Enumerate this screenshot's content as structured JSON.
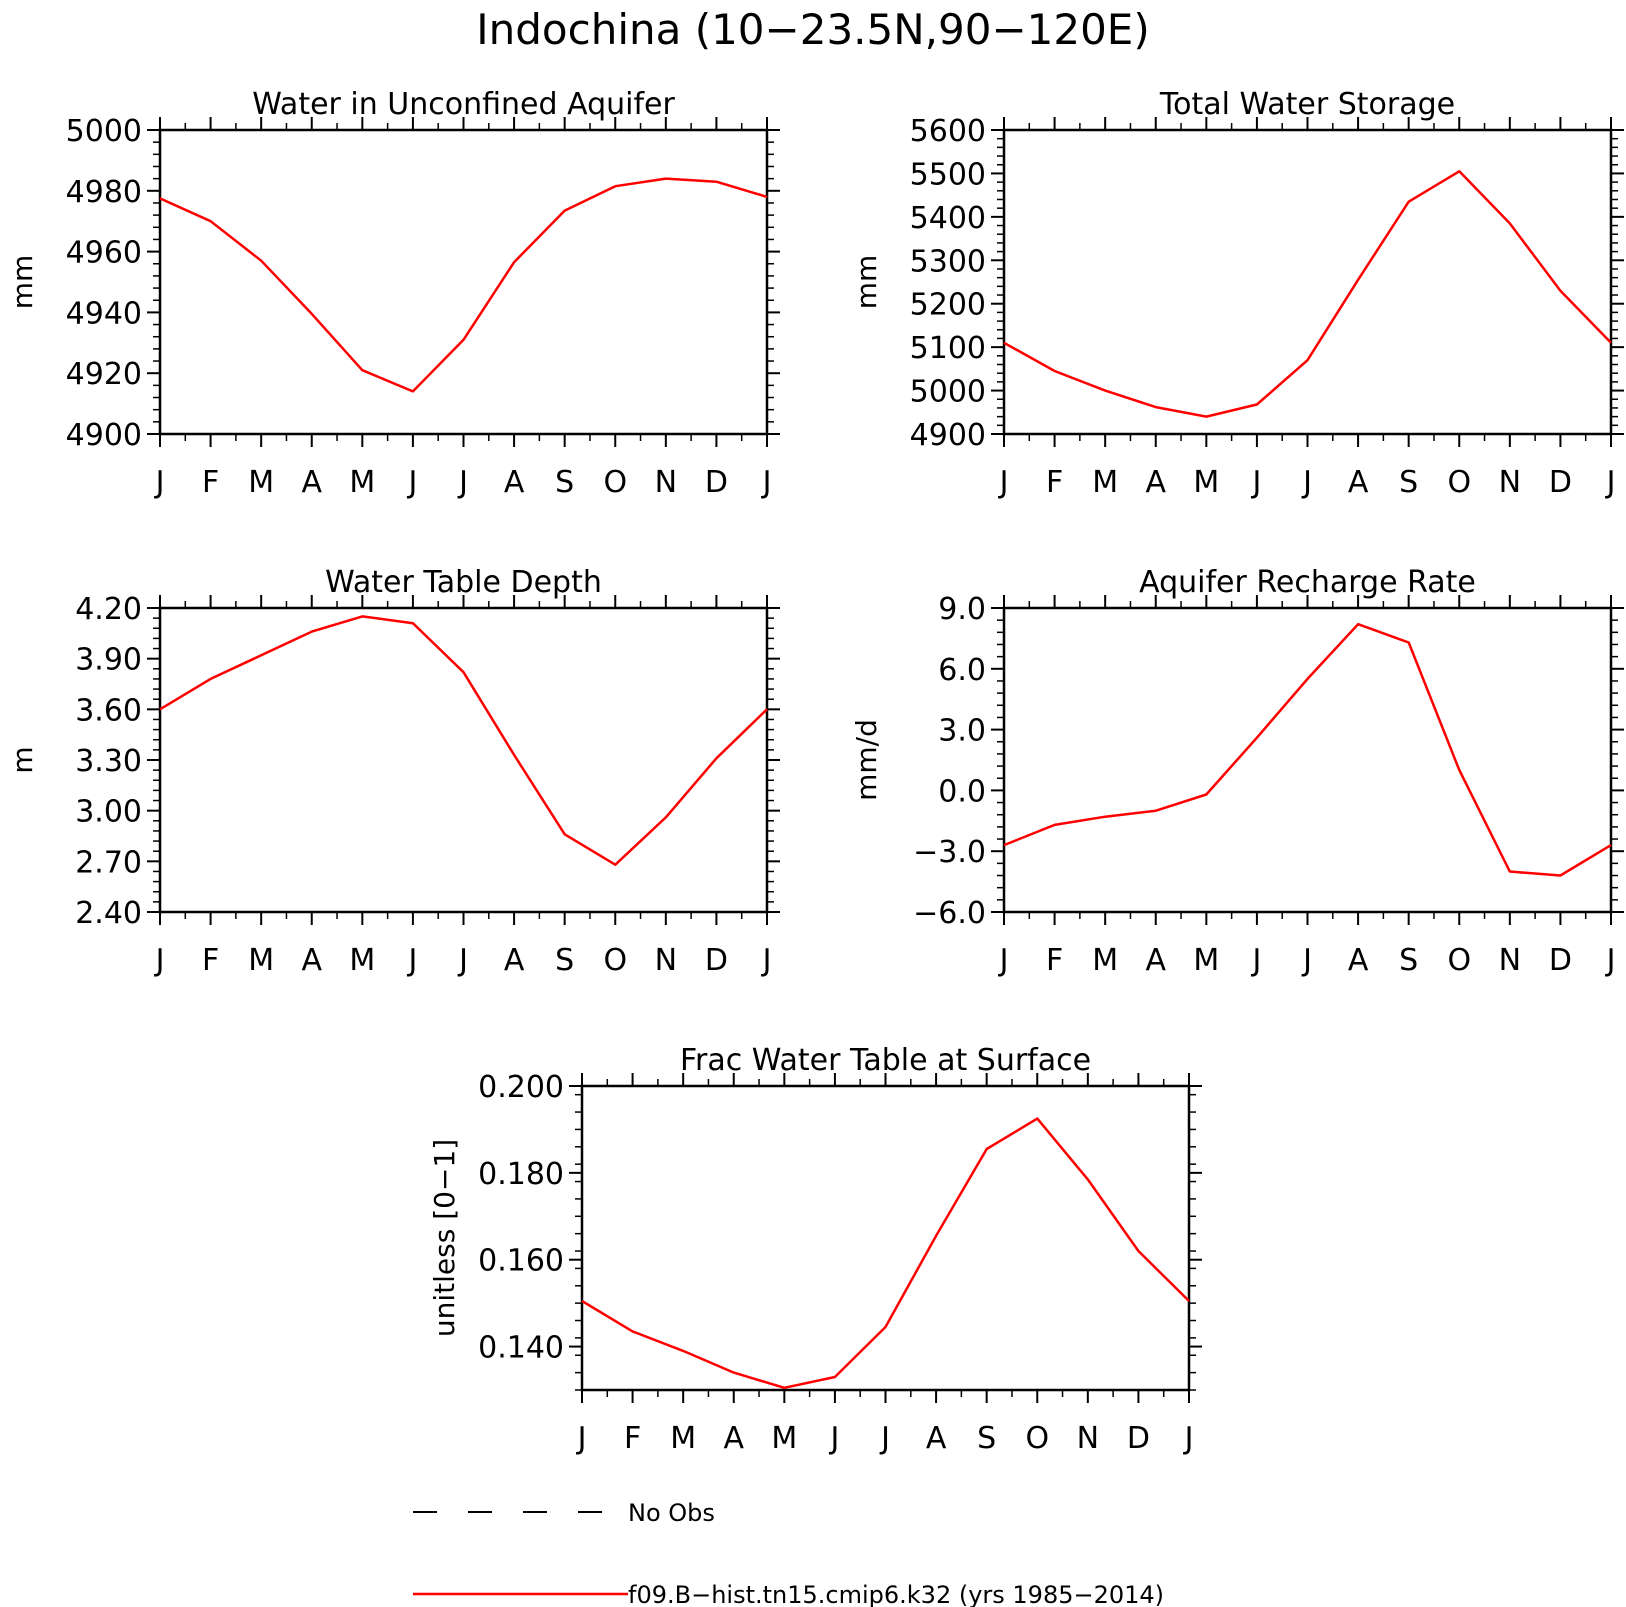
{
  "figure_title": "Indochina (10-23.5N,90-120E)",
  "legend": [
    {
      "label": "No Obs",
      "style": "dashed",
      "color": "#000000"
    },
    {
      "label": "f09.B-hist.tn15.cmip6.k32 (yrs 1985-2014)",
      "style": "solid",
      "color": "#ff0000"
    }
  ],
  "chart_data": [
    {
      "type": "line",
      "title": "Water in Unconfined Aquifer",
      "ylabel": "mm",
      "categories": [
        "J",
        "F",
        "M",
        "A",
        "M",
        "J",
        "J",
        "A",
        "S",
        "O",
        "N",
        "D",
        "J"
      ],
      "ylim": [
        4900,
        5000
      ],
      "yticks": [
        4900,
        4920,
        4940,
        4960,
        4980,
        5000
      ],
      "ytick_labels": [
        "4900",
        "4920",
        "4940",
        "4960",
        "4980",
        "5000"
      ],
      "series": [
        {
          "color": "#ff0000",
          "values": [
            4977.5,
            4970,
            4957,
            4939.5,
            4921,
            4914,
            4931,
            4956.5,
            4973.5,
            4981.5,
            4984,
            4983,
            4978
          ]
        }
      ]
    },
    {
      "type": "line",
      "title": "Total Water Storage",
      "ylabel": "mm",
      "categories": [
        "J",
        "F",
        "M",
        "A",
        "M",
        "J",
        "J",
        "A",
        "S",
        "O",
        "N",
        "D",
        "J"
      ],
      "ylim": [
        4900,
        5600
      ],
      "yticks": [
        4900,
        5000,
        5100,
        5200,
        5300,
        5400,
        5500,
        5600
      ],
      "ytick_labels": [
        "4900",
        "5000",
        "5100",
        "5200",
        "5300",
        "5400",
        "5500",
        "5600"
      ],
      "series": [
        {
          "color": "#ff0000",
          "values": [
            5110,
            5045,
            5000,
            4962,
            4940,
            4968,
            5070,
            5255,
            5435,
            5505,
            5385,
            5230,
            5110
          ]
        }
      ]
    },
    {
      "type": "line",
      "title": "Water Table Depth",
      "ylabel": "m",
      "categories": [
        "J",
        "F",
        "M",
        "A",
        "M",
        "J",
        "J",
        "A",
        "S",
        "O",
        "N",
        "D",
        "J"
      ],
      "ylim": [
        2.4,
        4.2
      ],
      "yticks": [
        2.4,
        2.7,
        3.0,
        3.3,
        3.6,
        3.9,
        4.2
      ],
      "ytick_labels": [
        "2.40",
        "2.70",
        "3.00",
        "3.30",
        "3.60",
        "3.90",
        "4.20"
      ],
      "series": [
        {
          "color": "#ff0000",
          "values": [
            3.6,
            3.78,
            3.92,
            4.06,
            4.15,
            4.11,
            3.82,
            3.33,
            2.86,
            2.68,
            2.96,
            3.31,
            3.6
          ]
        }
      ]
    },
    {
      "type": "line",
      "title": "Aquifer Recharge Rate",
      "ylabel": "mm/d",
      "categories": [
        "J",
        "F",
        "M",
        "A",
        "M",
        "J",
        "J",
        "A",
        "S",
        "O",
        "N",
        "D",
        "J"
      ],
      "ylim": [
        -6.0,
        9.0
      ],
      "yticks": [
        -6.0,
        -3.0,
        0.0,
        3.0,
        6.0,
        9.0
      ],
      "ytick_labels": [
        "-6.0",
        "-3.0",
        "0.0",
        "3.0",
        "6.0",
        "9.0"
      ],
      "series": [
        {
          "color": "#ff0000",
          "values": [
            -2.7,
            -1.7,
            -1.3,
            -1.0,
            -0.2,
            2.6,
            5.5,
            8.2,
            7.3,
            1.0,
            -4.0,
            -4.2,
            -2.7
          ]
        }
      ]
    },
    {
      "type": "line",
      "title": "Frac Water Table at Surface",
      "ylabel": "unitless [0-1]",
      "categories": [
        "J",
        "F",
        "M",
        "A",
        "M",
        "J",
        "J",
        "A",
        "S",
        "O",
        "N",
        "D",
        "J"
      ],
      "ylim": [
        0.13,
        0.2
      ],
      "yticks": [
        0.14,
        0.16,
        0.18,
        0.2
      ],
      "ytick_labels": [
        "0.140",
        "0.160",
        "0.180",
        "0.200"
      ],
      "series": [
        {
          "color": "#ff0000",
          "values": [
            0.1505,
            0.1435,
            0.139,
            0.134,
            0.1305,
            0.133,
            0.1445,
            0.1655,
            0.1855,
            0.1925,
            0.1785,
            0.162,
            0.1505
          ]
        }
      ]
    }
  ]
}
